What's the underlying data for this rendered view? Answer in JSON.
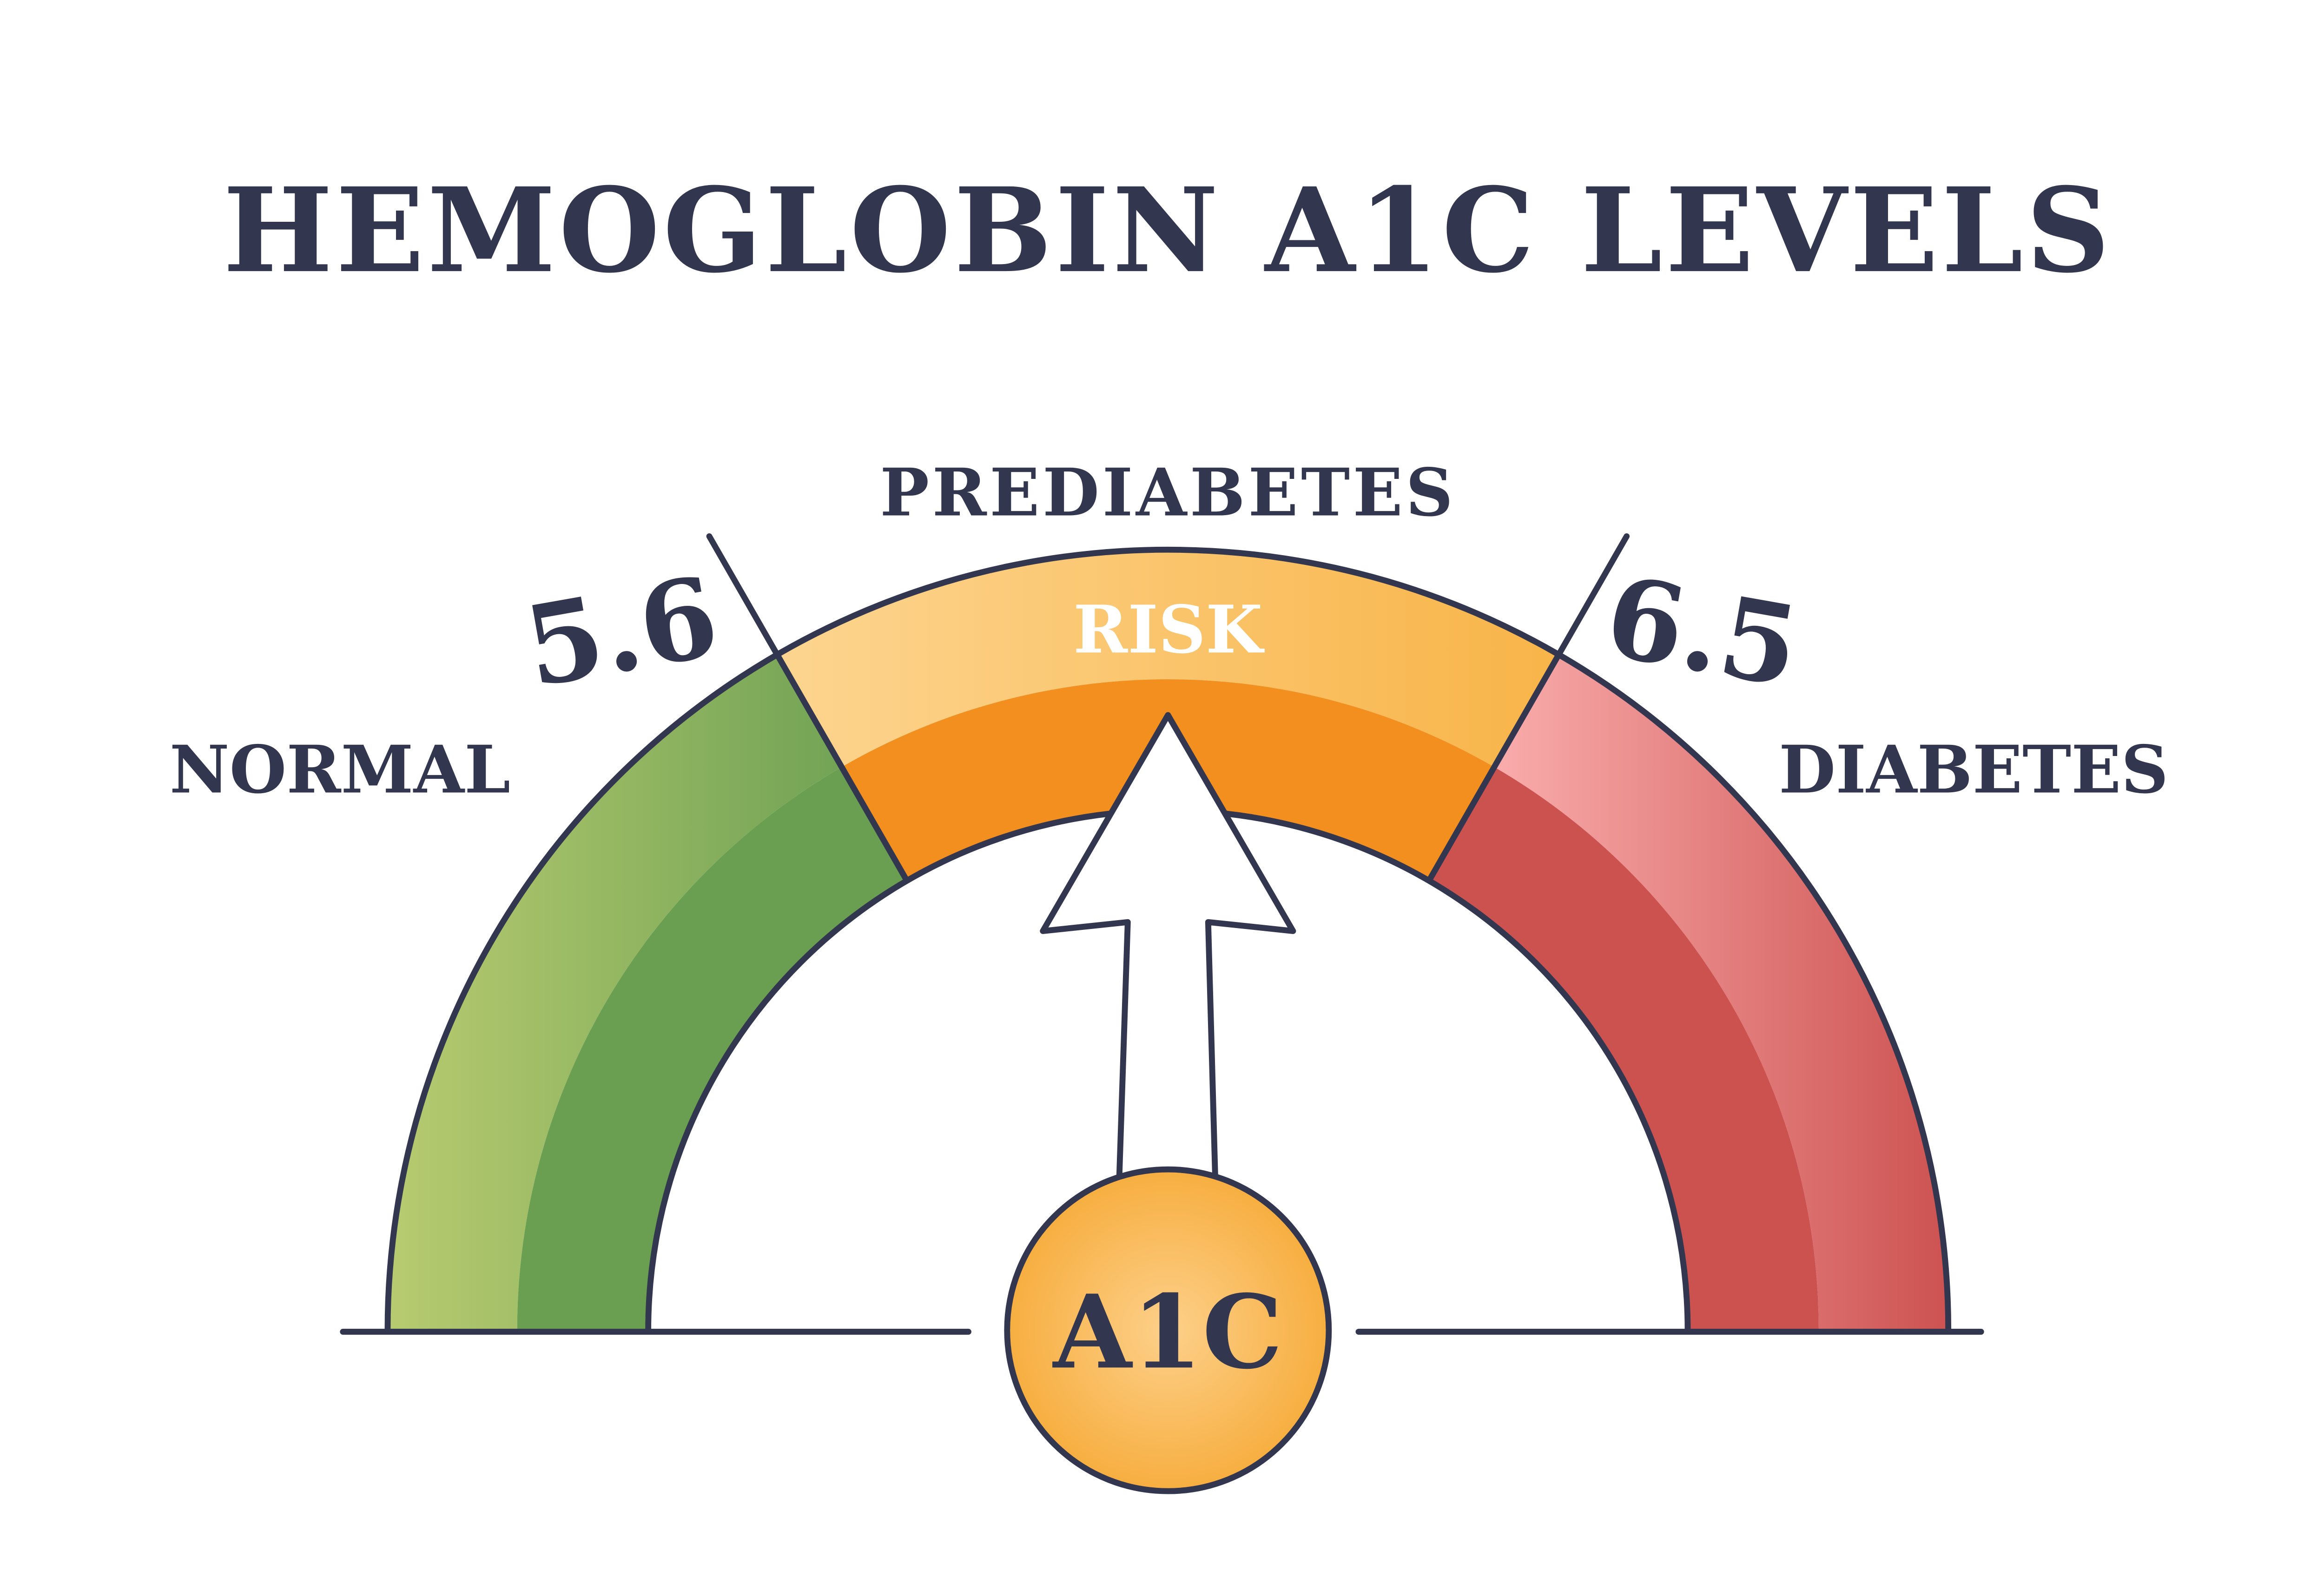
{
  "title": "HEMOGLOBIN A1C LEVELS",
  "labels": {
    "prediabetes": "PREDIABETES",
    "risk": "RISK",
    "normal": "NORMAL",
    "diabetes": "DIABETES",
    "threshold_low": "5.6",
    "threshold_high": "6.5",
    "center": "A1C"
  },
  "colors": {
    "outline": "#33364f",
    "normal_light": "#b8cb70",
    "normal_dark": "#6a9f52",
    "prediabetes_light": "#fdd590",
    "prediabetes_mid": "#f8b448",
    "prediabetes_dark": "#f28f1f",
    "diabetes_light": "#f9aaaa",
    "diabetes_mid": "#d2605f",
    "diabetes_dark": "#cc5250",
    "center_light": "#fdd08a",
    "center_dark": "#f7ae40"
  },
  "pointer": {
    "zone": "prediabetes"
  }
}
